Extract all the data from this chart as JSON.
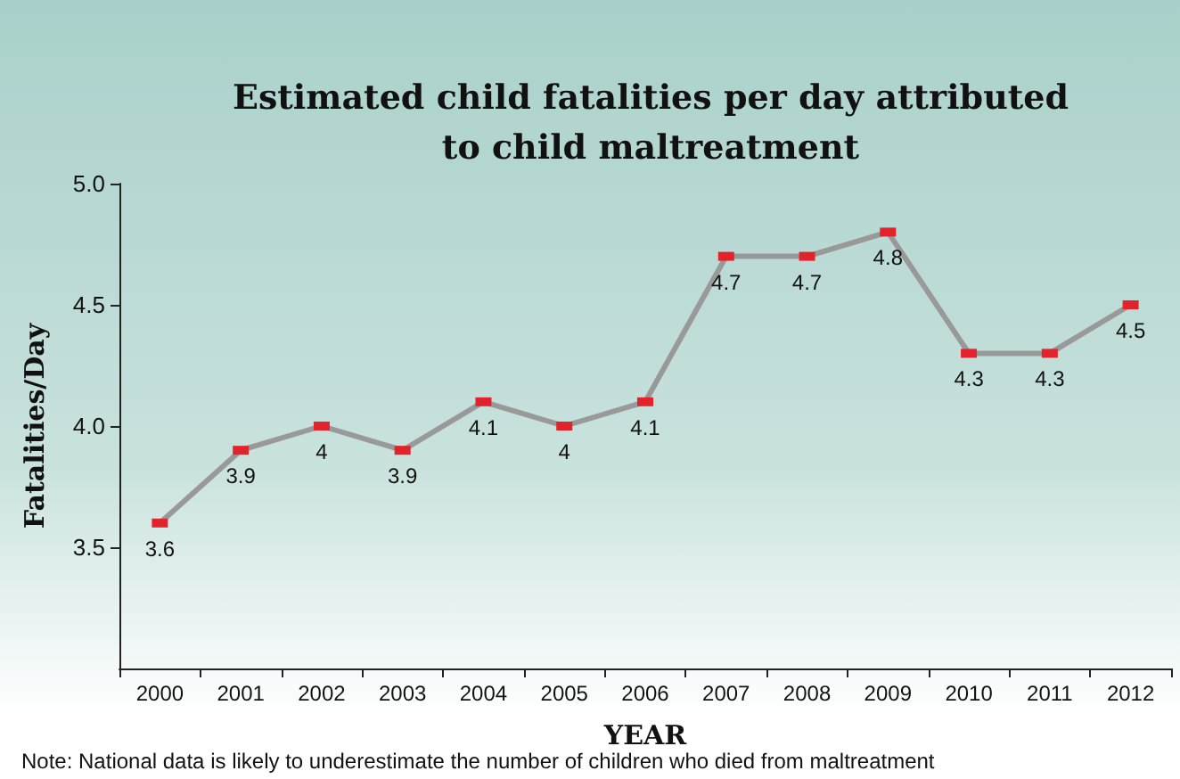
{
  "chart_data": {
    "type": "line",
    "title": "Estimated child fatalities per day attributed\nto child maltreatment",
    "xlabel": "YEAR",
    "ylabel": "Fatalities/Day",
    "categories": [
      "2000",
      "2001",
      "2002",
      "2003",
      "2004",
      "2005",
      "2006",
      "2007",
      "2008",
      "2009",
      "2010",
      "2011",
      "2012"
    ],
    "series": [
      {
        "color": "#999999",
        "values": [
          3.6,
          3.9,
          4,
          3.9,
          4.1,
          4,
          4.1,
          4.7,
          4.7,
          4.8,
          4.3,
          4.3,
          4.5
        ]
      }
    ],
    "ylim": [
      3.0,
      5.0
    ],
    "yticks": [
      3.5,
      {
        "value": 4,
        "label": "4.0"
      },
      4.5,
      {
        "value": 5,
        "label": "5.0"
      }
    ],
    "data_labels": true,
    "marker": "square",
    "line_style": "solid",
    "grid": false,
    "annotations": [
      "Note: National data is likely to underestimate the number of children who died from maltreatment"
    ]
  }
}
